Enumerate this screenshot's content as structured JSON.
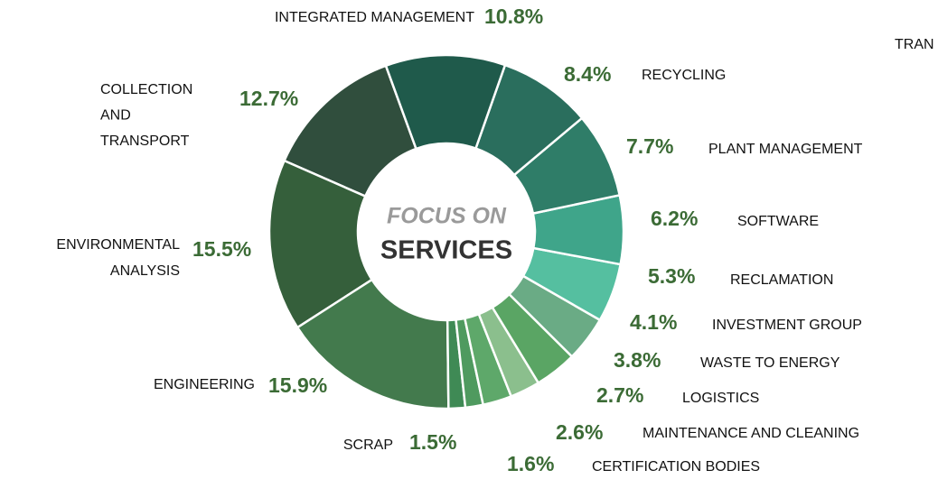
{
  "chart_data": {
    "type": "donut",
    "center_label": {
      "line1": "FOCUS ON",
      "line2": "SERVICES"
    },
    "annotation": "TRAN",
    "categories": [
      "INTEGRATED MANAGEMENT",
      "RECYCLING",
      "PLANT MANAGEMENT",
      "SOFTWARE",
      "RECLAMATION",
      "INVESTMENT GROUP",
      "WASTE TO ENERGY",
      "LOGISTICS",
      "MAINTENANCE AND CLEANING",
      "CERTIFICATION BODIES",
      "SCRAP",
      "ENGINEERING",
      "ENVIRONMENTAL ANALYSIS",
      "COLLECTION AND TRANSPORT"
    ],
    "values": [
      10.8,
      8.4,
      7.7,
      6.2,
      5.3,
      4.1,
      3.8,
      2.7,
      2.6,
      1.6,
      1.5,
      15.9,
      15.5,
      12.7
    ],
    "value_labels": [
      "10.8%",
      "8.4%",
      "7.7%",
      "6.2%",
      "5.3%",
      "4.1%",
      "3.8%",
      "2.7%",
      "2.6%",
      "1.6%",
      "1.5%",
      "15.9%",
      "15.5%",
      "12.7%"
    ],
    "colors": [
      "#1f5a4b",
      "#2a6e5d",
      "#2f7d68",
      "#3fa58a",
      "#55bfa0",
      "#6aab85",
      "#5aa564",
      "#8bbf8d",
      "#5ea86a",
      "#4f9a5f",
      "#3f8a55",
      "#437a4d",
      "#355f3b",
      "#304e3d"
    ]
  }
}
